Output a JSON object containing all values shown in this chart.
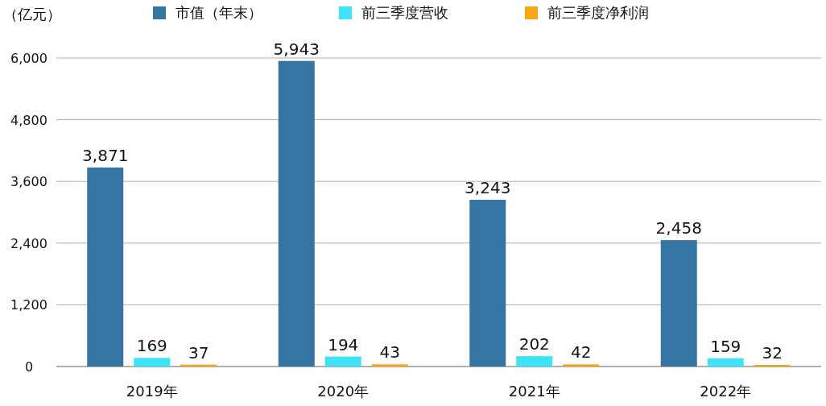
{
  "chart_data": {
    "type": "bar",
    "ylabel": "（亿元）",
    "categories": [
      "2019年",
      "2020年",
      "2021年",
      "2022年"
    ],
    "series": [
      {
        "name": "市值（年末）",
        "color": "#3674a3",
        "values": [
          3871,
          5943,
          3243,
          2458
        ],
        "value_labels": [
          "3,871",
          "5,943",
          "3,243",
          "2,458"
        ]
      },
      {
        "name": "前三季度营收",
        "color": "#3de3f7",
        "values": [
          169,
          194,
          202,
          159
        ],
        "value_labels": [
          "169",
          "194",
          "202",
          "159"
        ]
      },
      {
        "name": "前三季度净利润",
        "color": "#f8a614",
        "values": [
          37,
          43,
          42,
          32
        ],
        "value_labels": [
          "37",
          "43",
          "42",
          "32"
        ]
      }
    ],
    "ylim": [
      0,
      6000
    ],
    "yticks": [
      {
        "value": 0,
        "label": "0"
      },
      {
        "value": 1200,
        "label": "1,200"
      },
      {
        "value": 2400,
        "label": "2,400"
      },
      {
        "value": 3600,
        "label": "3,600"
      },
      {
        "value": 4800,
        "label": "4,800"
      },
      {
        "value": 6000,
        "label": "6,000"
      }
    ],
    "grid": "y",
    "legend": "top"
  }
}
